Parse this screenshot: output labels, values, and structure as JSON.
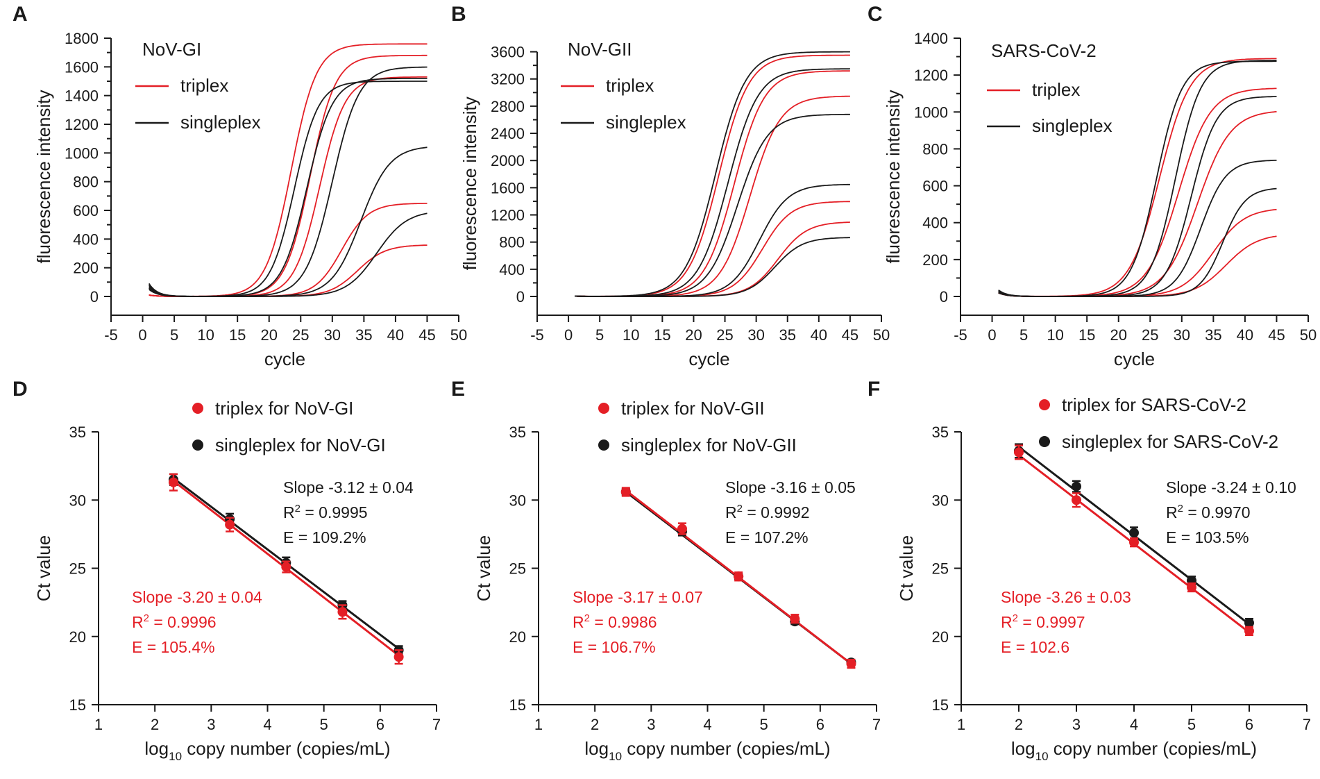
{
  "figure": {
    "colors": {
      "triplex": "#e41f26",
      "singleplex": "#1a1a1a",
      "axis": "#1a1a1a"
    }
  },
  "chart_data": [
    {
      "panel": "A",
      "type": "line",
      "xlabel": "cycle",
      "ylabel": "fluorescence intensity",
      "xlim": [
        -5,
        50
      ],
      "ylim": [
        0,
        1800
      ],
      "xticks": [
        -5,
        0,
        5,
        10,
        15,
        20,
        25,
        30,
        35,
        40,
        45,
        50
      ],
      "yticks": [
        0,
        200,
        400,
        600,
        800,
        1000,
        1200,
        1400,
        1600,
        1800
      ],
      "yminor": true,
      "title": "NoV-GI",
      "legend": [
        {
          "label": "triplex",
          "key": "triplex"
        },
        {
          "label": "singleplex",
          "key": "singleplex"
        }
      ],
      "series": [
        {
          "key": "triplex",
          "name": "triplex",
          "plateau": 1760,
          "midpoint": 23.5,
          "slope": 2.0,
          "start": 10
        },
        {
          "key": "triplex",
          "name": "triplex",
          "plateau": 1680,
          "midpoint": 26.5,
          "slope": 2.0,
          "start": 10
        },
        {
          "key": "triplex",
          "name": "triplex",
          "plateau": 1530,
          "midpoint": 28.0,
          "slope": 2.0,
          "start": 10
        },
        {
          "key": "triplex",
          "name": "triplex",
          "plateau": 650,
          "midpoint": 31.5,
          "slope": 2.1,
          "start": 10
        },
        {
          "key": "triplex",
          "name": "triplex",
          "plateau": 360,
          "midpoint": 34.0,
          "slope": 2.2,
          "start": 10
        },
        {
          "key": "singleplex",
          "name": "singleplex",
          "plateau": 1500,
          "midpoint": 24.0,
          "slope": 1.9,
          "start": 90
        },
        {
          "key": "singleplex",
          "name": "singleplex",
          "plateau": 1520,
          "midpoint": 26.0,
          "slope": 2.0,
          "start": 80
        },
        {
          "key": "singleplex",
          "name": "singleplex",
          "plateau": 1600,
          "midpoint": 30.0,
          "slope": 2.1,
          "start": 70
        },
        {
          "key": "singleplex",
          "name": "singleplex",
          "plateau": 1050,
          "midpoint": 34.5,
          "slope": 2.3,
          "start": 60
        },
        {
          "key": "singleplex",
          "name": "singleplex",
          "plateau": 600,
          "midpoint": 37.0,
          "slope": 2.4,
          "start": 50
        }
      ]
    },
    {
      "panel": "B",
      "type": "line",
      "xlabel": "cycle",
      "ylabel": "fluorescence intensity",
      "xlim": [
        -5,
        50
      ],
      "ylim": [
        0,
        3800
      ],
      "xticks": [
        -5,
        0,
        5,
        10,
        15,
        20,
        25,
        30,
        35,
        40,
        45,
        50
      ],
      "yticks": [
        0,
        400,
        800,
        1200,
        1600,
        2000,
        2400,
        2800,
        3200,
        3600
      ],
      "yminor": true,
      "title": "NoV-GII",
      "legend": [
        {
          "label": "triplex",
          "key": "triplex"
        },
        {
          "label": "singleplex",
          "key": "singleplex"
        }
      ],
      "series": [
        {
          "key": "triplex",
          "name": "triplex",
          "plateau": 3550,
          "midpoint": 24.0,
          "slope": 2.4,
          "start": 5
        },
        {
          "key": "triplex",
          "name": "triplex",
          "plateau": 3320,
          "midpoint": 26.5,
          "slope": 2.4,
          "start": 5
        },
        {
          "key": "triplex",
          "name": "triplex",
          "plateau": 2950,
          "midpoint": 29.0,
          "slope": 2.4,
          "start": 5
        },
        {
          "key": "triplex",
          "name": "triplex",
          "plateau": 1400,
          "midpoint": 31.0,
          "slope": 2.3,
          "start": 5
        },
        {
          "key": "triplex",
          "name": "triplex",
          "plateau": 1100,
          "midpoint": 33.5,
          "slope": 2.3,
          "start": 5
        },
        {
          "key": "singleplex",
          "name": "singleplex",
          "plateau": 3600,
          "midpoint": 23.5,
          "slope": 2.4,
          "start": 5
        },
        {
          "key": "singleplex",
          "name": "singleplex",
          "plateau": 3350,
          "midpoint": 25.5,
          "slope": 2.4,
          "start": 5
        },
        {
          "key": "singleplex",
          "name": "singleplex",
          "plateau": 2680,
          "midpoint": 27.0,
          "slope": 2.4,
          "start": 5
        },
        {
          "key": "singleplex",
          "name": "singleplex",
          "plateau": 1650,
          "midpoint": 30.5,
          "slope": 2.3,
          "start": 5
        },
        {
          "key": "singleplex",
          "name": "singleplex",
          "plateau": 870,
          "midpoint": 33.0,
          "slope": 2.2,
          "start": 5
        }
      ]
    },
    {
      "panel": "C",
      "type": "line",
      "xlabel": "cycle",
      "ylabel": "fluorescence intensity",
      "xlim": [
        -5,
        50
      ],
      "ylim": [
        0,
        1400
      ],
      "xticks": [
        -5,
        0,
        5,
        10,
        15,
        20,
        25,
        30,
        35,
        40,
        45,
        50
      ],
      "yticks": [
        0,
        200,
        400,
        600,
        800,
        1000,
        1200,
        1400
      ],
      "yminor": true,
      "title": "SARS-CoV-2",
      "legend": [
        {
          "label": "triplex",
          "key": "triplex"
        },
        {
          "label": "singleplex",
          "key": "singleplex"
        }
      ],
      "series": [
        {
          "key": "triplex",
          "name": "triplex",
          "plateau": 1290,
          "midpoint": 26.5,
          "slope": 2.4,
          "start": 20
        },
        {
          "key": "triplex",
          "name": "triplex",
          "plateau": 1130,
          "midpoint": 29.5,
          "slope": 2.5,
          "start": 20
        },
        {
          "key": "triplex",
          "name": "triplex",
          "plateau": 1010,
          "midpoint": 32.5,
          "slope": 2.6,
          "start": 20
        },
        {
          "key": "triplex",
          "name": "triplex",
          "plateau": 480,
          "midpoint": 35.0,
          "slope": 2.5,
          "start": 20
        },
        {
          "key": "triplex",
          "name": "triplex",
          "plateau": 340,
          "midpoint": 37.0,
          "slope": 2.5,
          "start": 20
        },
        {
          "key": "singleplex",
          "name": "singleplex",
          "plateau": 1275,
          "midpoint": 26.0,
          "slope": 2.0,
          "start": 35
        },
        {
          "key": "singleplex",
          "name": "singleplex",
          "plateau": 1280,
          "midpoint": 29.0,
          "slope": 2.0,
          "start": 30
        },
        {
          "key": "singleplex",
          "name": "singleplex",
          "plateau": 1085,
          "midpoint": 31.5,
          "slope": 2.0,
          "start": 25
        },
        {
          "key": "singleplex",
          "name": "singleplex",
          "plateau": 740,
          "midpoint": 33.0,
          "slope": 2.0,
          "start": 20
        },
        {
          "key": "singleplex",
          "name": "singleplex",
          "plateau": 590,
          "midpoint": 36.5,
          "slope": 1.8,
          "start": 20
        }
      ]
    },
    {
      "panel": "D",
      "type": "scatter",
      "xlabel_pre": "log",
      "xlabel_sub": "10",
      "xlabel_post": " copy number (copies/mL)",
      "ylabel": "Ct value",
      "xlim": [
        1,
        7
      ],
      "ylim": [
        15,
        35
      ],
      "xticks": [
        1,
        2,
        3,
        4,
        5,
        6,
        7
      ],
      "yticks": [
        15,
        20,
        25,
        30,
        35
      ],
      "legend": [
        {
          "label": "triplex for NoV-GI",
          "key": "triplex"
        },
        {
          "label": "singleplex for NoV-GI",
          "key": "singleplex"
        }
      ],
      "series": [
        {
          "key": "triplex",
          "name": "triplex for NoV-GI",
          "x": [
            2.33,
            3.33,
            4.33,
            5.33,
            6.33
          ],
          "y": [
            31.3,
            28.2,
            25.1,
            21.8,
            18.5
          ],
          "err": [
            0.6,
            0.5,
            0.4,
            0.5,
            0.5
          ],
          "fit": [
            [
              2.33,
              31.4
            ],
            [
              6.33,
              18.6
            ]
          ]
        },
        {
          "key": "singleplex",
          "name": "singleplex for NoV-GI",
          "x": [
            2.33,
            3.33,
            4.33,
            5.33,
            6.33
          ],
          "y": [
            31.5,
            28.6,
            25.4,
            22.3,
            19.0
          ],
          "err": [
            0.4,
            0.4,
            0.4,
            0.3,
            0.3
          ],
          "fit": [
            [
              2.33,
              31.6
            ],
            [
              6.33,
              19.1
            ]
          ]
        }
      ],
      "annotations": [
        {
          "key": "singleplex",
          "slope": "Slope -3.12 ± 0.04",
          "r2_pre": "R",
          "r2_sup": "2",
          "r2_post": " = 0.9995",
          "e": "E = 109.2%"
        },
        {
          "key": "triplex",
          "slope": "Slope -3.20 ± 0.04",
          "r2_pre": "R",
          "r2_sup": "2",
          "r2_post": " = 0.9996",
          "e": "E = 105.4%"
        }
      ]
    },
    {
      "panel": "E",
      "type": "scatter",
      "xlabel_pre": "log",
      "xlabel_sub": "10",
      "xlabel_post": " copy number (copies/mL)",
      "ylabel": "Ct value",
      "xlim": [
        1,
        7
      ],
      "ylim": [
        15,
        35
      ],
      "xticks": [
        1,
        2,
        3,
        4,
        5,
        6,
        7
      ],
      "yticks": [
        15,
        20,
        25,
        30,
        35
      ],
      "legend": [
        {
          "label": "triplex for NoV-GII",
          "key": "triplex"
        },
        {
          "label": "singleplex for NoV-GII",
          "key": "singleplex"
        }
      ],
      "series": [
        {
          "key": "triplex",
          "name": "triplex for NoV-GII",
          "x": [
            2.55,
            3.55,
            4.55,
            5.55,
            6.55
          ],
          "y": [
            30.6,
            27.9,
            24.4,
            21.3,
            18.0
          ],
          "err": [
            0.3,
            0.4,
            0.3,
            0.3,
            0.3
          ],
          "fit": [
            [
              2.55,
              30.7
            ],
            [
              6.55,
              18.0
            ]
          ]
        },
        {
          "key": "singleplex",
          "name": "singleplex for NoV-GII",
          "x": [
            2.55,
            3.55,
            4.55,
            5.55,
            6.55
          ],
          "y": [
            30.6,
            27.7,
            24.4,
            21.1,
            18.1
          ],
          "err": [
            0.2,
            0.3,
            0.2,
            0.2,
            0.2
          ],
          "fit": [
            [
              2.55,
              30.6
            ],
            [
              6.55,
              18.0
            ]
          ]
        }
      ],
      "annotations": [
        {
          "key": "singleplex",
          "slope": "Slope -3.16 ± 0.05",
          "r2_pre": "R",
          "r2_sup": "2",
          "r2_post": " = 0.9992",
          "e": "E = 107.2%"
        },
        {
          "key": "triplex",
          "slope": "Slope -3.17 ± 0.07",
          "r2_pre": "R",
          "r2_sup": "2",
          "r2_post": " = 0.9986",
          "e": "E = 106.7%"
        }
      ]
    },
    {
      "panel": "F",
      "type": "scatter",
      "xlabel_pre": "log",
      "xlabel_sub": "10",
      "xlabel_post": " copy number (copies/mL)",
      "ylabel": "Ct value",
      "xlim": [
        1,
        7
      ],
      "ylim": [
        15,
        35
      ],
      "xticks": [
        1,
        2,
        3,
        4,
        5,
        6,
        7
      ],
      "yticks": [
        15,
        20,
        25,
        30,
        35
      ],
      "legend": [
        {
          "label": "triplex for SARS-CoV-2",
          "key": "triplex"
        },
        {
          "label": "singleplex for SARS-CoV-2",
          "key": "singleplex"
        }
      ],
      "series": [
        {
          "key": "triplex",
          "name": "triplex for SARS-CoV-2",
          "x": [
            2,
            3,
            4,
            5,
            6
          ],
          "y": [
            33.5,
            30.0,
            26.9,
            23.6,
            20.4
          ],
          "err": [
            0.5,
            0.5,
            0.3,
            0.3,
            0.3
          ],
          "fit": [
            [
              2,
              33.3
            ],
            [
              6,
              20.3
            ]
          ]
        },
        {
          "key": "singleplex",
          "name": "singleplex for SARS-CoV-2",
          "x": [
            2,
            3,
            4,
            5,
            6
          ],
          "y": [
            33.6,
            31.0,
            27.6,
            24.1,
            21.0
          ],
          "err": [
            0.5,
            0.4,
            0.4,
            0.3,
            0.3
          ],
          "fit": [
            [
              2,
              33.9
            ],
            [
              6,
              20.9
            ]
          ]
        }
      ],
      "annotations": [
        {
          "key": "singleplex",
          "slope": "Slope -3.24 ± 0.10",
          "r2_pre": "R",
          "r2_sup": "2",
          "r2_post": " = 0.9970",
          "e": "E = 103.5%"
        },
        {
          "key": "triplex",
          "slope": "Slope -3.26 ± 0.03",
          "r2_pre": "R",
          "r2_sup": "2",
          "r2_post": " = 0.9997",
          "e": "E = 102.6"
        }
      ]
    }
  ]
}
